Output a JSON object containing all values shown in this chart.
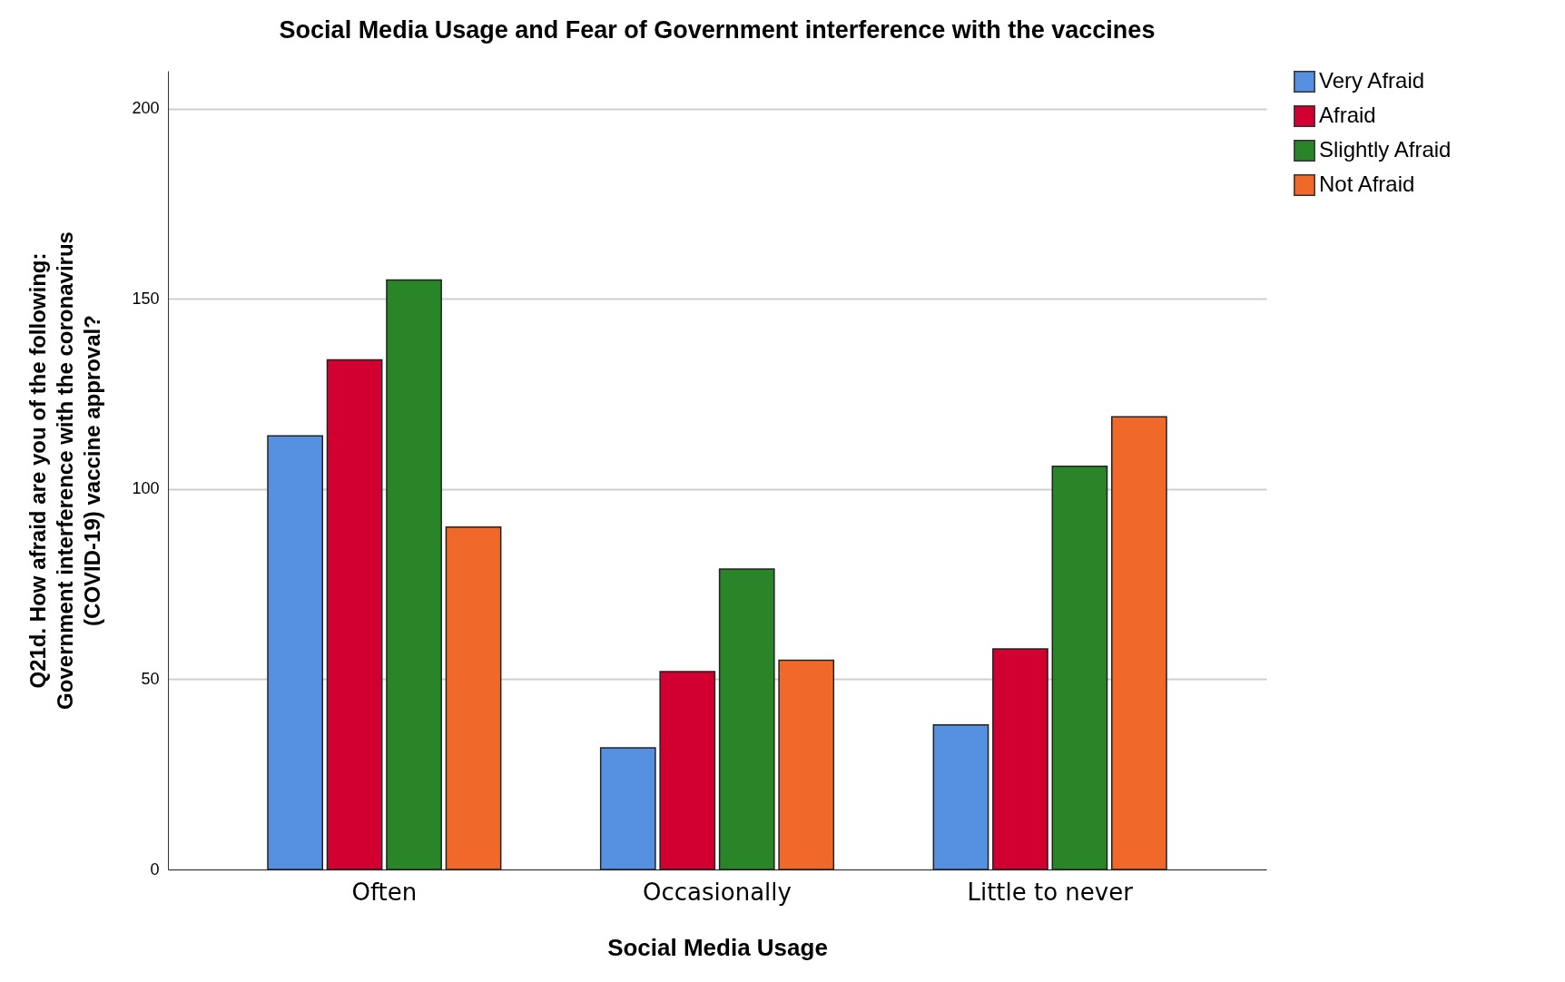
{
  "chart_data": {
    "type": "bar",
    "title": "Social Media Usage and Fear of Government interference with the vaccines",
    "xlabel": "Social Media Usage",
    "ylabel": "Q21d. How afraid are you of the following:\nGovernment interference with the coronavirus\n(COVID-19) vaccine approval?",
    "categories": [
      "Often",
      "Occasionally",
      "Little to never"
    ],
    "series": [
      {
        "name": "Very Afraid",
        "color": "#5591e0",
        "values": [
          114,
          32,
          38
        ]
      },
      {
        "name": "Afraid",
        "color": "#d20030",
        "values": [
          134,
          52,
          58
        ]
      },
      {
        "name": "Slightly Afraid",
        "color": "#2a8528",
        "values": [
          155,
          79,
          106
        ]
      },
      {
        "name": "Not Afraid",
        "color": "#f0682a",
        "values": [
          90,
          55,
          119
        ]
      }
    ],
    "ylim": [
      0,
      210
    ],
    "yticks": [
      0,
      50,
      100,
      150,
      200
    ],
    "grid": "y",
    "legend": "right"
  }
}
